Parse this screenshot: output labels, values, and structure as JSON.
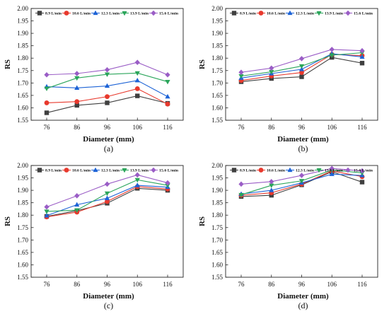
{
  "colors": [
    "#3f3f3f",
    "#e8392d",
    "#1d63d6",
    "#2aa55a",
    "#9a5dc6"
  ],
  "markers": [
    "square",
    "circle",
    "triangle-up",
    "triangle-down",
    "diamond"
  ],
  "chart_data": [
    {
      "type": "line",
      "panel_label": "(a)",
      "xlabel": "Diameter (mm)",
      "ylabel": "RS",
      "categories": [
        "76",
        "86",
        "96",
        "106",
        "116"
      ],
      "ylim": [
        1.55,
        2.0
      ],
      "yticks": [
        "1.55",
        "1.60",
        "1.65",
        "1.70",
        "1.75",
        "1.80",
        "1.85",
        "1.90",
        "1.95",
        "2.00"
      ],
      "legend_position": "top",
      "series": [
        {
          "name": "8.9 L/min",
          "values": [
            1.58,
            1.61,
            1.62,
            1.648,
            1.618
          ]
        },
        {
          "name": "10.6 L/min",
          "values": [
            1.62,
            1.625,
            1.645,
            1.677,
            1.615
          ]
        },
        {
          "name": "12.3 L/min",
          "values": [
            1.685,
            1.68,
            1.688,
            1.71,
            1.645
          ]
        },
        {
          "name": "13.9 L/min",
          "values": [
            1.678,
            1.72,
            1.735,
            1.74,
            1.705
          ]
        },
        {
          "name": "15.6 L/min",
          "values": [
            1.733,
            1.738,
            1.753,
            1.783,
            1.733
          ]
        }
      ]
    },
    {
      "type": "line",
      "panel_label": "(b)",
      "xlabel": "Diameter (mm)",
      "ylabel": "RS",
      "categories": [
        "76",
        "86",
        "96",
        "106",
        "116"
      ],
      "ylim": [
        1.55,
        2.0
      ],
      "yticks": [
        "1.55",
        "1.60",
        "1.65",
        "1.70",
        "1.75",
        "1.80",
        "1.85",
        "1.90",
        "1.95",
        "2.00"
      ],
      "legend_position": "top",
      "series": [
        {
          "name": "8.9 L/min",
          "values": [
            1.705,
            1.718,
            1.725,
            1.803,
            1.78
          ]
        },
        {
          "name": "10.6 L/min",
          "values": [
            1.71,
            1.728,
            1.742,
            1.815,
            1.81
          ]
        },
        {
          "name": "12.3 L/min",
          "values": [
            1.72,
            1.738,
            1.755,
            1.818,
            1.805
          ]
        },
        {
          "name": "13.9 L/min",
          "values": [
            1.728,
            1.745,
            1.768,
            1.812,
            1.822
          ]
        },
        {
          "name": "15.6 L/min",
          "values": [
            1.743,
            1.76,
            1.798,
            1.835,
            1.83
          ]
        }
      ]
    },
    {
      "type": "line",
      "panel_label": "(c)",
      "xlabel": "Diameter (mm)",
      "ylabel": "RS",
      "categories": [
        "76",
        "86",
        "96",
        "106",
        "116"
      ],
      "ylim": [
        1.55,
        2.0
      ],
      "yticks": [
        "1.55",
        "1.60",
        "1.65",
        "1.70",
        "1.75",
        "1.80",
        "1.85",
        "1.90",
        "1.95",
        "2.00"
      ],
      "legend_position": "top",
      "series": [
        {
          "name": "8.9 L/min",
          "values": [
            1.795,
            1.818,
            1.848,
            1.908,
            1.9
          ]
        },
        {
          "name": "10.6 L/min",
          "values": [
            1.793,
            1.812,
            1.855,
            1.915,
            1.905
          ]
        },
        {
          "name": "12.3 L/min",
          "values": [
            1.798,
            1.842,
            1.868,
            1.92,
            1.913
          ]
        },
        {
          "name": "13.9 L/min",
          "values": [
            1.815,
            1.82,
            1.888,
            1.942,
            1.92
          ]
        },
        {
          "name": "15.6 L/min",
          "values": [
            1.833,
            1.878,
            1.925,
            1.962,
            1.93
          ]
        }
      ]
    },
    {
      "type": "line",
      "panel_label": "(d)",
      "xlabel": "Diameter (mm)",
      "ylabel": "RS",
      "categories": [
        "76",
        "86",
        "96",
        "106",
        "116"
      ],
      "ylim": [
        1.55,
        2.0
      ],
      "yticks": [
        "1.55",
        "1.60",
        "1.65",
        "1.70",
        "1.75",
        "1.80",
        "1.85",
        "1.90",
        "1.95",
        "2.00"
      ],
      "legend_position": "top",
      "series": [
        {
          "name": "8.9 L/min",
          "values": [
            1.875,
            1.88,
            1.922,
            1.975,
            1.933
          ]
        },
        {
          "name": "10.6 L/min",
          "values": [
            1.88,
            1.89,
            1.925,
            1.978,
            1.955
          ]
        },
        {
          "name": "12.3 L/min",
          "values": [
            1.885,
            1.9,
            1.93,
            1.965,
            1.96
          ]
        },
        {
          "name": "13.9 L/min",
          "values": [
            1.882,
            1.92,
            1.938,
            1.982,
            1.97
          ]
        },
        {
          "name": "15.6 L/min",
          "values": [
            1.925,
            1.935,
            1.96,
            1.988,
            1.978
          ]
        }
      ]
    }
  ]
}
